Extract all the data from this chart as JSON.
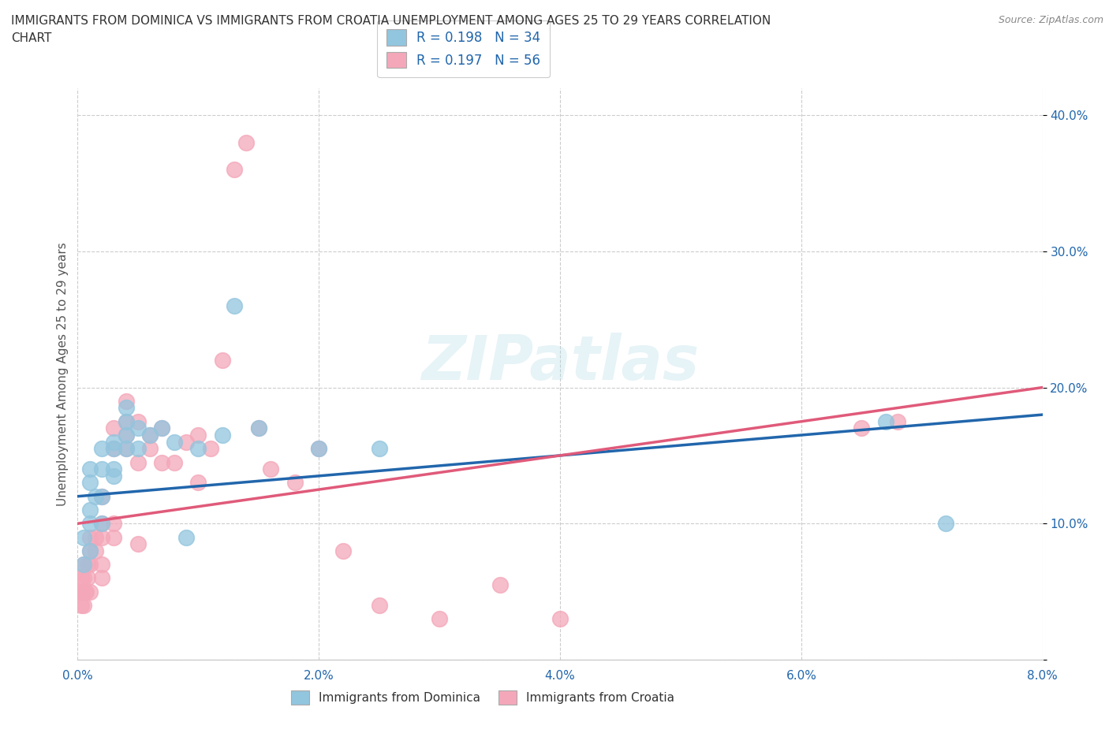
{
  "title": "IMMIGRANTS FROM DOMINICA VS IMMIGRANTS FROM CROATIA UNEMPLOYMENT AMONG AGES 25 TO 29 YEARS CORRELATION\nCHART",
  "source": "Source: ZipAtlas.com",
  "ylabel": "Unemployment Among Ages 25 to 29 years",
  "xlim": [
    0.0,
    0.08
  ],
  "ylim": [
    0.0,
    0.42
  ],
  "xticks": [
    0.0,
    0.02,
    0.04,
    0.06,
    0.08
  ],
  "xtick_labels": [
    "0.0%",
    "2.0%",
    "4.0%",
    "6.0%",
    "8.0%"
  ],
  "yticks": [
    0.0,
    0.1,
    0.2,
    0.3,
    0.4
  ],
  "ytick_labels": [
    "",
    "10.0%",
    "20.0%",
    "30.0%",
    "40.0%"
  ],
  "blue_color": "#92c5de",
  "pink_color": "#f4a7b9",
  "blue_line_color": "#2166ac",
  "pink_line_color": "#e05a7a",
  "legend_R1": "R = 0.198",
  "legend_N1": "N = 34",
  "legend_R2": "R = 0.197",
  "legend_N2": "N = 56",
  "label1": "Immigrants from Dominica",
  "label2": "Immigrants from Croatia",
  "watermark": "ZIPatlas",
  "dominica_x": [
    0.0005,
    0.0005,
    0.001,
    0.001,
    0.001,
    0.001,
    0.001,
    0.0015,
    0.002,
    0.002,
    0.002,
    0.002,
    0.003,
    0.003,
    0.003,
    0.003,
    0.004,
    0.004,
    0.004,
    0.004,
    0.005,
    0.005,
    0.006,
    0.007,
    0.008,
    0.009,
    0.01,
    0.012,
    0.013,
    0.015,
    0.02,
    0.025,
    0.067,
    0.072
  ],
  "dominica_y": [
    0.07,
    0.09,
    0.08,
    0.1,
    0.11,
    0.13,
    0.14,
    0.12,
    0.1,
    0.12,
    0.14,
    0.155,
    0.135,
    0.14,
    0.155,
    0.16,
    0.155,
    0.165,
    0.175,
    0.185,
    0.155,
    0.17,
    0.165,
    0.17,
    0.16,
    0.09,
    0.155,
    0.165,
    0.26,
    0.17,
    0.155,
    0.155,
    0.175,
    0.1
  ],
  "croatia_x": [
    0.0003,
    0.0003,
    0.0003,
    0.0004,
    0.0005,
    0.0005,
    0.0005,
    0.0006,
    0.0007,
    0.0008,
    0.0008,
    0.001,
    0.001,
    0.001,
    0.001,
    0.0015,
    0.0015,
    0.002,
    0.002,
    0.002,
    0.002,
    0.002,
    0.003,
    0.003,
    0.003,
    0.003,
    0.004,
    0.004,
    0.004,
    0.004,
    0.005,
    0.005,
    0.005,
    0.006,
    0.006,
    0.007,
    0.007,
    0.008,
    0.009,
    0.01,
    0.01,
    0.011,
    0.012,
    0.013,
    0.014,
    0.015,
    0.016,
    0.018,
    0.02,
    0.022,
    0.025,
    0.03,
    0.035,
    0.04,
    0.065,
    0.068
  ],
  "croatia_y": [
    0.04,
    0.05,
    0.06,
    0.05,
    0.04,
    0.06,
    0.07,
    0.05,
    0.05,
    0.06,
    0.07,
    0.05,
    0.07,
    0.08,
    0.09,
    0.08,
    0.09,
    0.06,
    0.07,
    0.09,
    0.1,
    0.12,
    0.09,
    0.1,
    0.155,
    0.17,
    0.155,
    0.165,
    0.175,
    0.19,
    0.085,
    0.145,
    0.175,
    0.155,
    0.165,
    0.145,
    0.17,
    0.145,
    0.16,
    0.13,
    0.165,
    0.155,
    0.22,
    0.36,
    0.38,
    0.17,
    0.14,
    0.13,
    0.155,
    0.08,
    0.04,
    0.03,
    0.055,
    0.03,
    0.17,
    0.175
  ]
}
